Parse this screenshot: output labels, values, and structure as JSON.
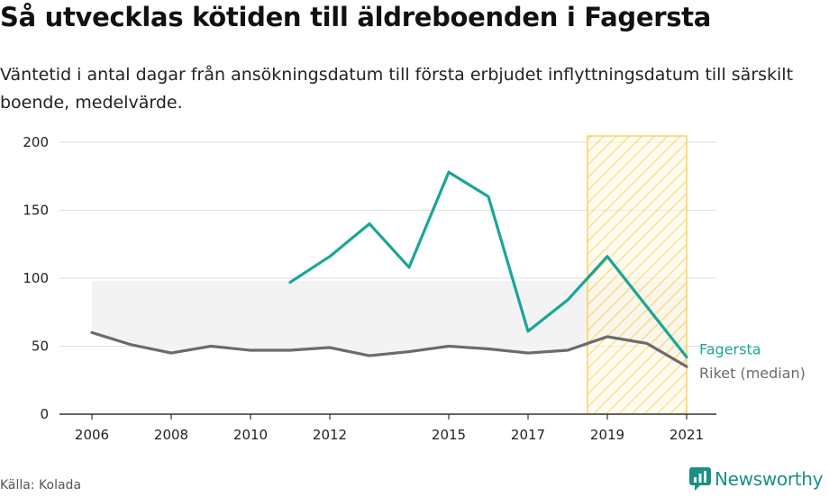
{
  "title": "Så utvecklas kötiden till äldreboenden i Fagersta",
  "subtitle": "Väntetid i antal dagar från ansökningsdatum till första erbjudet inflyttningsdatum till särskilt boende, medelvärde.",
  "source": "Källa: Kolada",
  "brand": "Newsworthy",
  "colors": {
    "fagersta": "#1aa599",
    "riket": "#6d6970",
    "area": "#f3f3f3",
    "highlight": "#f5c842",
    "grid": "#dddddd"
  },
  "chart_data": {
    "type": "line",
    "title": "Så utvecklas kötiden till äldreboenden i Fagersta",
    "ylim": [
      0,
      200
    ],
    "xlim": [
      2006,
      2021
    ],
    "yticks": [
      0,
      50,
      100,
      150,
      200
    ],
    "xticks": [
      2006,
      2008,
      2010,
      2012,
      2015,
      2017,
      2019,
      2021
    ],
    "grid": true,
    "highlight_range": [
      2018.5,
      2021
    ],
    "series": [
      {
        "name": "Fagersta",
        "x": [
          2011,
          2012,
          2013,
          2014,
          2015,
          2016,
          2017,
          2018,
          2019,
          2020,
          2021
        ],
        "values": [
          97,
          116,
          140,
          108,
          178,
          160,
          61,
          84,
          116,
          79,
          42
        ]
      },
      {
        "name": "Riket (median)",
        "x": [
          2006,
          2007,
          2008,
          2009,
          2010,
          2011,
          2012,
          2013,
          2014,
          2015,
          2016,
          2017,
          2018,
          2019,
          2020,
          2021
        ],
        "values": [
          60,
          51,
          45,
          50,
          47,
          47,
          49,
          43,
          46,
          50,
          48,
          45,
          47,
          57,
          52,
          35
        ]
      }
    ],
    "band": {
      "x": [
        2006,
        2021
      ],
      "values": [
        98,
        98
      ]
    }
  }
}
